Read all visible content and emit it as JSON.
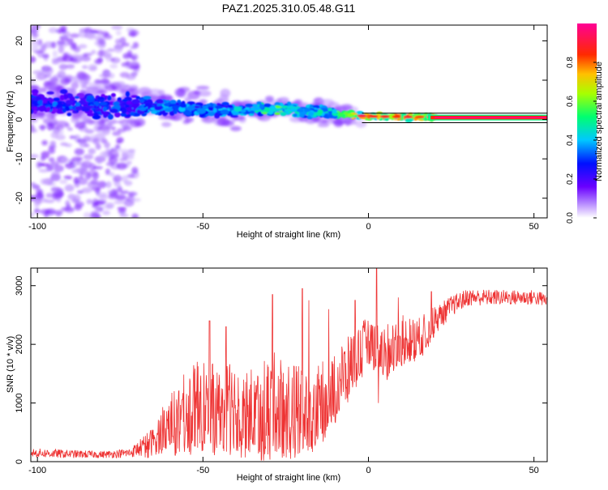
{
  "title": "PAZ1.2025.310.05.48.G11",
  "chart_data": [
    {
      "type": "heatmap",
      "name": "spectrogram",
      "xlabel": "Height of straight line (km)",
      "ylabel": "Frequency (Hz)",
      "xlim": [
        -102,
        54
      ],
      "ylim": [
        -25,
        24
      ],
      "xticks": [
        -100,
        -50,
        0,
        50
      ],
      "xtick_labels": [
        "-100",
        "-50",
        "0",
        "50"
      ],
      "yticks": [
        -20,
        -10,
        0,
        10,
        20
      ],
      "ytick_labels": [
        "-20",
        "-10",
        "0",
        "10",
        "20"
      ],
      "colorbar": {
        "label": "Normalized spectral amplitude",
        "range": [
          0,
          1
        ],
        "ticks": [
          0.0,
          0.2,
          0.4,
          0.6,
          0.8
        ],
        "tick_labels": [
          "0.0",
          "0.2",
          "0.4",
          "0.6",
          "0.8"
        ],
        "colors": [
          "#ffffff",
          "#8a00ff",
          "#1a00ff",
          "#00c8ff",
          "#00ff60",
          "#c8ff00",
          "#ffb000",
          "#ff2000",
          "#ff0090"
        ]
      },
      "description_of_signal": {
        "noise_region_km": [
          -102,
          -70
        ],
        "center_track_hz": [
          [
            -100,
            4
          ],
          [
            -60,
            3
          ],
          [
            -40,
            2
          ],
          [
            -30,
            3
          ],
          [
            -10,
            1.5
          ],
          [
            0,
            0.8
          ],
          [
            30,
            0.5
          ],
          [
            54,
            0.5
          ]
        ],
        "strong_line_start_km": 20,
        "strong_line_level_hz": 0.5
      }
    },
    {
      "type": "line",
      "name": "snr",
      "xlabel": "Height of straight line (km)",
      "ylabel": "SNR (10 * v/v)",
      "xlim": [
        -102,
        54
      ],
      "ylim": [
        0,
        3300
      ],
      "xticks": [
        -100,
        -50,
        0,
        50
      ],
      "xtick_labels": [
        "-100",
        "-50",
        "0",
        "50"
      ],
      "yticks": [
        0,
        1000,
        2000,
        3000
      ],
      "ytick_labels": [
        "0",
        "1000",
        "2000",
        "3000"
      ],
      "line_color": "#ee3333",
      "series": [
        {
          "name": "SNR",
          "envelope_x": [
            -102,
            -90,
            -80,
            -72,
            -65,
            -60,
            -55,
            -50,
            -45,
            -40,
            -35,
            -30,
            -25,
            -20,
            -15,
            -10,
            -5,
            0,
            5,
            10,
            15,
            20,
            25,
            30,
            40,
            50,
            54
          ],
          "envelope_mean": [
            150,
            130,
            120,
            150,
            350,
            700,
            900,
            1000,
            900,
            1000,
            900,
            1000,
            1000,
            900,
            1000,
            1300,
            1700,
            2100,
            1900,
            2100,
            2100,
            2400,
            2650,
            2800,
            2800,
            2800,
            2750
          ],
          "envelope_amp": [
            80,
            70,
            60,
            80,
            250,
            500,
            650,
            800,
            700,
            800,
            700,
            900,
            800,
            700,
            650,
            600,
            500,
            400,
            450,
            400,
            350,
            250,
            180,
            150,
            130,
            130,
            130
          ],
          "spikes": [
            [
              -48,
              2400
            ],
            [
              -43,
              2300
            ],
            [
              -29,
              2850
            ],
            [
              -20,
              2950
            ],
            [
              -18,
              2750
            ],
            [
              -12,
              2600
            ],
            [
              -4,
              2750
            ],
            [
              2.5,
              3300
            ],
            [
              3,
              1000
            ],
            [
              9,
              2800
            ],
            [
              19,
              2900
            ]
          ]
        }
      ]
    }
  ]
}
